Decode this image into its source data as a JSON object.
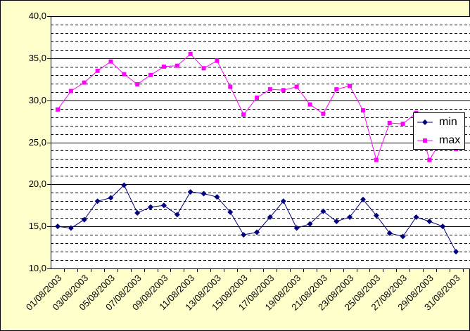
{
  "chart_data": {
    "type": "line",
    "categories": [
      "01/08/2003",
      null,
      "03/08/2003",
      null,
      "05/08/2003",
      null,
      "07/08/2003",
      null,
      "09/08/2003",
      null,
      "11/08/2003",
      null,
      "13/08/2003",
      null,
      "15/08/2003",
      null,
      "17/08/2003",
      null,
      "19/08/2003",
      null,
      "21/08/2003",
      null,
      "23/08/2003",
      null,
      "25/08/2003",
      null,
      "27/08/2003",
      null,
      "29/08/2003",
      null,
      "31/08/2003"
    ],
    "series": [
      {
        "name": "min",
        "color": "#000080",
        "marker": "diamond",
        "values": [
          15.0,
          14.8,
          15.8,
          18.0,
          18.4,
          19.9,
          16.6,
          17.3,
          17.5,
          16.4,
          19.1,
          18.9,
          18.5,
          16.7,
          14.0,
          14.3,
          16.1,
          18.0,
          14.8,
          15.3,
          16.8,
          15.6,
          16.1,
          18.2,
          16.3,
          14.2,
          13.8,
          16.1,
          15.6,
          15.0,
          12.0
        ]
      },
      {
        "name": "max",
        "color": "#ff00ff",
        "marker": "square",
        "values": [
          28.9,
          31.1,
          32.1,
          33.5,
          34.6,
          33.1,
          31.9,
          33.0,
          34.0,
          34.1,
          35.5,
          33.8,
          34.7,
          31.6,
          28.3,
          30.3,
          31.3,
          31.2,
          31.6,
          29.5,
          28.4,
          31.3,
          31.7,
          28.8,
          22.9,
          27.3,
          27.2,
          28.5,
          22.9,
          25.5,
          24.2
        ]
      }
    ],
    "ylim": [
      10,
      40
    ],
    "yticks": [
      {
        "value": 10,
        "label": "10,0"
      },
      {
        "value": 15,
        "label": "15,0"
      },
      {
        "value": 20,
        "label": "20,0"
      },
      {
        "value": 25,
        "label": "25,0"
      },
      {
        "value": 30,
        "label": "30,0"
      },
      {
        "value": 35,
        "label": "35,0"
      },
      {
        "value": 40,
        "label": "40,0"
      }
    ],
    "y_minor_ticks": [
      11,
      12,
      13,
      14,
      16,
      17,
      18,
      19,
      21,
      22,
      23,
      24,
      26,
      27,
      28,
      29,
      31,
      32,
      33,
      34,
      36,
      37,
      38,
      39
    ],
    "grid": true,
    "legend": "right"
  }
}
